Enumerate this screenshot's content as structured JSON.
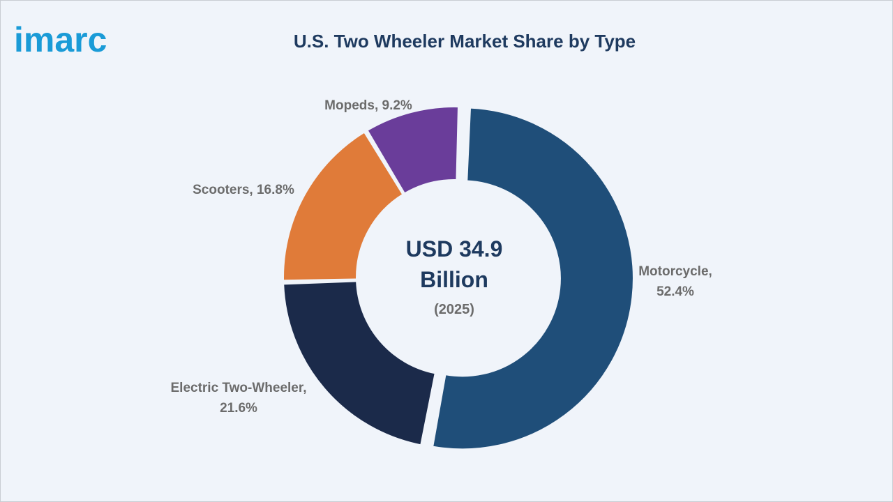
{
  "brand": {
    "logo_text": "imarc",
    "logo_color": "#1a9bd7"
  },
  "chart_data": {
    "type": "pie",
    "title": "U.S. Two Wheeler Market Share by Type",
    "center_value": "USD 34.9",
    "center_unit": "Billion",
    "center_year": "(2025)",
    "series": [
      {
        "name": "Motorcycle",
        "value": 52.4,
        "label_line1": "Motorcycle,",
        "label_line2": "52.4%",
        "color": "#1f4e79"
      },
      {
        "name": "Electric Two-Wheeler",
        "value": 21.6,
        "label_line1": "Electric Two-Wheeler,",
        "label_line2": "21.6%",
        "color": "#1b2a4a"
      },
      {
        "name": "Scooters",
        "value": 16.8,
        "label_line1": "Scooters, 16.8%",
        "label_line2": "",
        "color": "#e07b39"
      },
      {
        "name": "Mopeds",
        "value": 9.2,
        "label_line1": "Mopeds, 9.2%",
        "label_line2": "",
        "color": "#6a3d9a"
      }
    ]
  }
}
